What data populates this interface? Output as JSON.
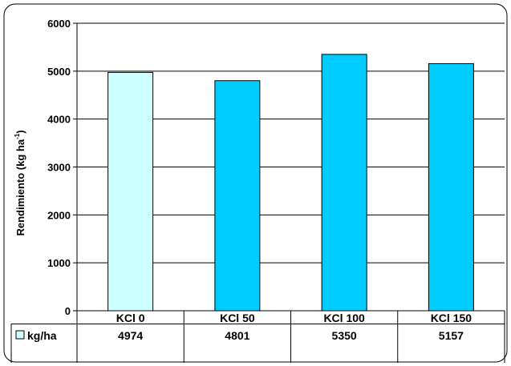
{
  "chart_data": {
    "type": "bar",
    "categories": [
      "KCl 0",
      "KCl 50",
      "KCl 100",
      "KCl 150"
    ],
    "series": [
      {
        "name": "kg/ha",
        "values": [
          4974,
          4801,
          5350,
          5157
        ]
      }
    ],
    "ylabel_main": "Rendimiento (kg ha",
    "ylabel_sup": "-1",
    "ylabel_close": ")",
    "ylim": [
      0,
      6000
    ],
    "yticks": [
      0,
      1000,
      2000,
      3000,
      4000,
      5000,
      6000
    ],
    "data_table": true,
    "grid": true,
    "colors": {
      "first_bar": "#CCFFFF",
      "bars": "#00CCFF",
      "legend_swatch": "#CCFFFF",
      "outline": "#000000"
    }
  }
}
